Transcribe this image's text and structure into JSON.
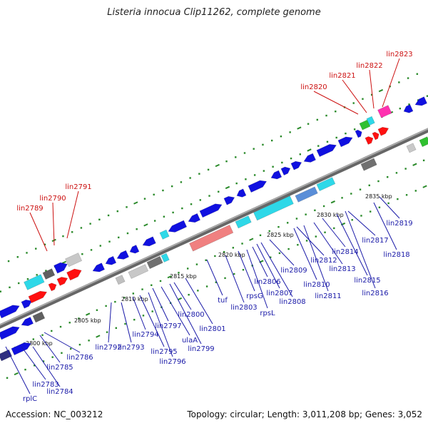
{
  "title": "Listeria innocua Clip11262, complete genome",
  "footer": {
    "accession": "Accession: NC_003212",
    "topology": "Topology: circular; Length: 3,011,208 bp; Genes: 3,052"
  },
  "colors": {
    "backbone": "#8c8c8c",
    "gene_default": "#1010e0",
    "gene_rna": "#2ed8e8",
    "gene_highlight": "#ff1010",
    "label_default": "#1a1aa8",
    "label_highlight": "#cc1010",
    "dot": "#2a8a2a"
  },
  "ticks": [
    "2800 kbp",
    "2805 kbp",
    "2810 kbp",
    "2815 kbp",
    "2820 kbp",
    "2825 kbp",
    "2830 kbp",
    "2835 kbp"
  ],
  "labels_top": [
    "lin2789",
    "lin2790",
    "lin2791",
    "lin2820",
    "lin2821",
    "lin2822",
    "lin2823"
  ],
  "labels_bottom": [
    "rplC",
    "lin2784",
    "lin2783",
    "lin2785",
    "lin2786",
    "lin2792",
    "lin2793",
    "lin2794",
    "lin2795",
    "lin2796",
    "lin2797",
    "ulaA",
    "lin2799",
    "lin2800",
    "lin2801",
    "tuf",
    "lin2803",
    "rpsG",
    "rpsL",
    "lin2806",
    "lin2807",
    "lin2808",
    "lin2809",
    "lin2810",
    "lin2811",
    "lin2812",
    "lin2813",
    "lin2814",
    "lin2815",
    "lin2816",
    "lin2817",
    "lin2818",
    "lin2819"
  ]
}
